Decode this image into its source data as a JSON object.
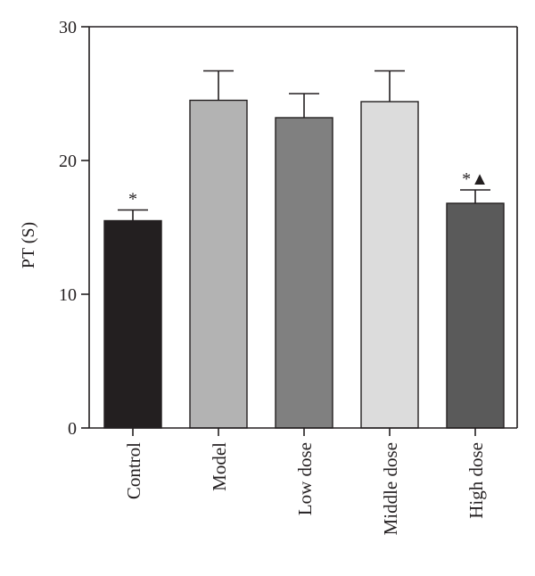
{
  "chart_data": {
    "type": "bar",
    "title": "",
    "xlabel": "",
    "ylabel": "PT (S)",
    "ylim": [
      0,
      30
    ],
    "yticks": [
      0,
      10,
      20,
      30
    ],
    "categories": [
      "Control",
      "Model",
      "Low dose",
      "Middle dose",
      "High dose"
    ],
    "values": [
      15.5,
      24.5,
      23.2,
      24.4,
      16.8
    ],
    "errors": [
      0.8,
      2.2,
      1.8,
      2.3,
      1.0
    ],
    "annotations": [
      "*",
      "",
      "",
      "",
      "*▲"
    ],
    "colors": [
      "#231f20",
      "#b3b3b3",
      "#808080",
      "#dcdcdc",
      "#5a5a5a"
    ],
    "grid": false,
    "legend": "none"
  }
}
